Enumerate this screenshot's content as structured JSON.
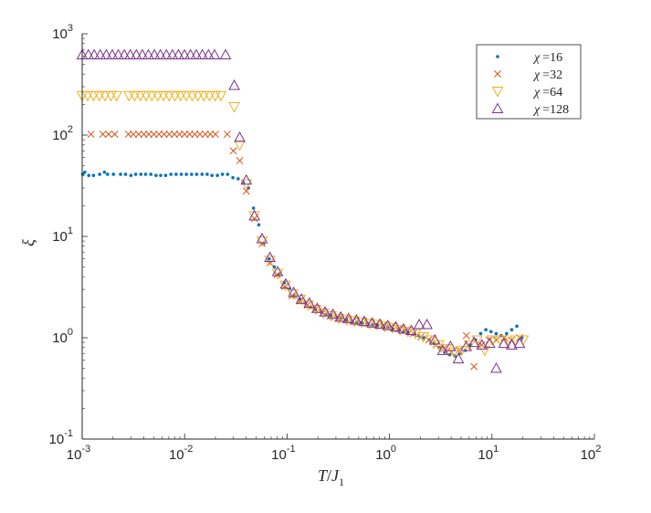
{
  "chart_data": {
    "type": "scatter",
    "title": "",
    "xlabel_main": "T",
    "xlabel_sep": "/",
    "xlabel_var": "J",
    "xlabel_sub": "1",
    "ylabel": "ξ",
    "xscale": "log",
    "yscale": "log",
    "xlim": [
      0.001,
      100
    ],
    "ylim": [
      0.1,
      1000
    ],
    "legend_position": "top-right",
    "x_ticks": [
      {
        "base": "10",
        "exp": "-3"
      },
      {
        "base": "10",
        "exp": "-2"
      },
      {
        "base": "10",
        "exp": "-1"
      },
      {
        "base": "10",
        "exp": "0"
      },
      {
        "base": "10",
        "exp": "1"
      },
      {
        "base": "10",
        "exp": "2"
      }
    ],
    "y_ticks": [
      {
        "base": "10",
        "exp": "-1"
      },
      {
        "base": "10",
        "exp": "0"
      },
      {
        "base": "10",
        "exp": "1"
      },
      {
        "base": "10",
        "exp": "2"
      },
      {
        "base": "10",
        "exp": "3"
      }
    ],
    "series": [
      {
        "name": "χ =16",
        "label_var": "χ",
        "label_eq": "=16",
        "marker": "dot",
        "color": "#0072BD",
        "points": [
          [
            0.00101,
            41
          ],
          [
            0.00106,
            43
          ],
          [
            0.00116,
            40
          ],
          [
            0.00129,
            40
          ],
          [
            0.00148,
            41
          ],
          [
            0.00165,
            43
          ],
          [
            0.00177,
            41
          ],
          [
            0.00202,
            41
          ],
          [
            0.00237,
            41
          ],
          [
            0.00265,
            41
          ],
          [
            0.00299,
            40
          ],
          [
            0.00333,
            41
          ],
          [
            0.00374,
            41
          ],
          [
            0.00416,
            41
          ],
          [
            0.00468,
            41
          ],
          [
            0.00526,
            40
          ],
          [
            0.00584,
            40
          ],
          [
            0.00653,
            40
          ],
          [
            0.00735,
            41
          ],
          [
            0.00826,
            41
          ],
          [
            0.00928,
            41
          ],
          [
            0.0104,
            41
          ],
          [
            0.0117,
            41
          ],
          [
            0.0131,
            41
          ],
          [
            0.0148,
            41
          ],
          [
            0.0166,
            41
          ],
          [
            0.0185,
            40
          ],
          [
            0.0209,
            40
          ],
          [
            0.0234,
            41
          ],
          [
            0.0263,
            41
          ],
          [
            0.0296,
            38
          ],
          [
            0.0333,
            37
          ],
          [
            0.0374,
            34
          ],
          [
            0.042,
            30
          ],
          [
            0.047,
            19
          ],
          [
            0.053,
            13
          ],
          [
            0.059,
            8.5
          ],
          [
            0.067,
            6
          ],
          [
            0.075,
            5
          ],
          [
            0.084,
            4.2
          ],
          [
            0.094,
            3.5
          ],
          [
            0.106,
            3
          ],
          [
            0.119,
            2.6
          ],
          [
            0.134,
            2.4
          ],
          [
            0.15,
            2.2
          ],
          [
            0.169,
            2
          ],
          [
            0.189,
            1.9
          ],
          [
            0.213,
            1.8
          ],
          [
            0.239,
            1.7
          ],
          [
            0.268,
            1.65
          ],
          [
            0.301,
            1.6
          ],
          [
            0.338,
            1.55
          ],
          [
            0.38,
            1.5
          ],
          [
            0.427,
            1.45
          ],
          [
            0.479,
            1.42
          ],
          [
            0.538,
            1.4
          ],
          [
            0.604,
            1.38
          ],
          [
            0.678,
            1.35
          ],
          [
            0.762,
            1.33
          ],
          [
            0.856,
            1.3
          ],
          [
            0.961,
            1.28
          ],
          [
            1.08,
            1.22
          ],
          [
            1.21,
            1.18
          ],
          [
            1.36,
            1.15
          ],
          [
            1.53,
            1.12
          ],
          [
            1.72,
            1.08
          ],
          [
            1.93,
            1.05
          ],
          [
            2.17,
            1
          ],
          [
            2.43,
            0.95
          ],
          [
            2.73,
            0.88
          ],
          [
            3.07,
            0.8
          ],
          [
            3.45,
            0.72
          ],
          [
            3.87,
            0.68
          ],
          [
            4.35,
            0.66
          ],
          [
            4.88,
            0.7
          ],
          [
            5.48,
            0.75
          ],
          [
            6.16,
            0.85
          ],
          [
            6.91,
            0.95
          ],
          [
            7.76,
            1.1
          ],
          [
            8.72,
            1.2
          ],
          [
            9.8,
            1.15
          ],
          [
            11,
            1.1
          ],
          [
            12.3,
            1.05
          ],
          [
            13.9,
            1.1
          ],
          [
            15.6,
            1.2
          ],
          [
            17.5,
            1.3
          ],
          [
            19.6,
            1
          ]
        ]
      },
      {
        "name": "χ =32",
        "label_var": "χ",
        "label_eq": "=32",
        "marker": "x",
        "color": "#D95319",
        "points": [
          [
            0.00122,
            102
          ],
          [
            0.00159,
            102
          ],
          [
            0.00181,
            102
          ],
          [
            0.00208,
            102
          ],
          [
            0.00283,
            102
          ],
          [
            0.00316,
            102
          ],
          [
            0.00356,
            102
          ],
          [
            0.004,
            102
          ],
          [
            0.00447,
            102
          ],
          [
            0.00501,
            102
          ],
          [
            0.00562,
            102
          ],
          [
            0.00631,
            102
          ],
          [
            0.00708,
            102
          ],
          [
            0.00795,
            102
          ],
          [
            0.00892,
            102
          ],
          [
            0.01,
            102
          ],
          [
            0.0112,
            102
          ],
          [
            0.0126,
            102
          ],
          [
            0.0141,
            102
          ],
          [
            0.0159,
            102
          ],
          [
            0.0178,
            102
          ],
          [
            0.02,
            102
          ],
          [
            0.0261,
            102
          ],
          [
            0.0299,
            70
          ],
          [
            0.0345,
            56
          ],
          [
            0.04,
            28
          ],
          [
            0.048,
            15
          ],
          [
            0.057,
            8.5
          ],
          [
            0.068,
            5.5
          ],
          [
            0.08,
            4.2
          ],
          [
            0.095,
            3.2
          ],
          [
            0.112,
            2.6
          ],
          [
            0.133,
            2.3
          ],
          [
            0.158,
            2.1
          ],
          [
            0.187,
            1.9
          ],
          [
            0.222,
            1.75
          ],
          [
            0.263,
            1.65
          ],
          [
            0.312,
            1.55
          ],
          [
            0.37,
            1.5
          ],
          [
            0.438,
            1.45
          ],
          [
            0.52,
            1.42
          ],
          [
            0.616,
            1.38
          ],
          [
            0.73,
            1.35
          ],
          [
            0.866,
            1.32
          ],
          [
            1.03,
            1.28
          ],
          [
            1.22,
            1.22
          ],
          [
            1.44,
            1.18
          ],
          [
            1.71,
            1.1
          ],
          [
            2.03,
            1.02
          ],
          [
            2.41,
            0.95
          ],
          [
            2.85,
            0.85
          ],
          [
            3.38,
            0.78
          ],
          [
            4.01,
            0.72
          ],
          [
            4.75,
            0.75
          ],
          [
            5.63,
            1.05
          ],
          [
            6.68,
            0.52
          ],
          [
            7.92,
            0.85
          ],
          [
            9.39,
            0.95
          ],
          [
            11.1,
            0.95
          ],
          [
            13.2,
            1
          ],
          [
            15.6,
            0.95
          ],
          [
            18.6,
            1
          ]
        ]
      },
      {
        "name": "χ =64",
        "label_var": "χ",
        "label_eq": "=64",
        "marker": "triangle-down",
        "color": "#EDB120",
        "points": [
          [
            0.001,
            245
          ],
          [
            0.00113,
            245
          ],
          [
            0.00129,
            245
          ],
          [
            0.00147,
            245
          ],
          [
            0.00167,
            245
          ],
          [
            0.00191,
            245
          ],
          [
            0.00217,
            245
          ],
          [
            0.00286,
            245
          ],
          [
            0.00325,
            245
          ],
          [
            0.0037,
            245
          ],
          [
            0.00421,
            245
          ],
          [
            0.00479,
            245
          ],
          [
            0.00546,
            245
          ],
          [
            0.00621,
            245
          ],
          [
            0.00707,
            245
          ],
          [
            0.00805,
            245
          ],
          [
            0.00916,
            245
          ],
          [
            0.0104,
            245
          ],
          [
            0.0119,
            245
          ],
          [
            0.0135,
            245
          ],
          [
            0.0154,
            245
          ],
          [
            0.0175,
            245
          ],
          [
            0.0199,
            245
          ],
          [
            0.0226,
            245
          ],
          [
            0.0305,
            190
          ],
          [
            0.0345,
            80
          ],
          [
            0.04,
            33
          ],
          [
            0.048,
            16
          ],
          [
            0.057,
            9
          ],
          [
            0.068,
            5.8
          ],
          [
            0.081,
            4.3
          ],
          [
            0.096,
            3.3
          ],
          [
            0.114,
            2.7
          ],
          [
            0.135,
            2.4
          ],
          [
            0.161,
            2.1
          ],
          [
            0.191,
            1.9
          ],
          [
            0.227,
            1.75
          ],
          [
            0.27,
            1.65
          ],
          [
            0.321,
            1.55
          ],
          [
            0.381,
            1.5
          ],
          [
            0.453,
            1.45
          ],
          [
            0.538,
            1.42
          ],
          [
            0.639,
            1.38
          ],
          [
            0.76,
            1.35
          ],
          [
            0.903,
            1.3
          ],
          [
            1.07,
            1.25
          ],
          [
            1.27,
            1.2
          ],
          [
            1.51,
            1.15
          ],
          [
            1.8,
            1.1
          ],
          [
            2.14,
            1.02
          ],
          [
            2.54,
            0.95
          ],
          [
            3.02,
            0.85
          ],
          [
            3.59,
            0.78
          ],
          [
            4.26,
            0.72
          ],
          [
            5.06,
            0.75
          ],
          [
            6.02,
            0.85
          ],
          [
            7.15,
            0.95
          ],
          [
            8.5,
            0.75
          ],
          [
            10.1,
            0.95
          ],
          [
            12,
            0.95
          ],
          [
            14.3,
            0.9
          ],
          [
            17,
            0.95
          ],
          [
            20.2,
            0.95
          ]
        ]
      },
      {
        "name": "χ =128",
        "label_var": "χ",
        "label_eq": "=128",
        "marker": "triangle-up",
        "color": "#7E2F8E",
        "points": [
          [
            0.001,
            620
          ],
          [
            0.00115,
            620
          ],
          [
            0.00131,
            620
          ],
          [
            0.0015,
            620
          ],
          [
            0.00172,
            620
          ],
          [
            0.00197,
            620
          ],
          [
            0.00225,
            620
          ],
          [
            0.00258,
            620
          ],
          [
            0.00295,
            620
          ],
          [
            0.00338,
            620
          ],
          [
            0.00387,
            620
          ],
          [
            0.00443,
            620
          ],
          [
            0.00507,
            620
          ],
          [
            0.0058,
            620
          ],
          [
            0.00664,
            620
          ],
          [
            0.0076,
            620
          ],
          [
            0.0087,
            620
          ],
          [
            0.00996,
            620
          ],
          [
            0.0114,
            620
          ],
          [
            0.013,
            620
          ],
          [
            0.0149,
            620
          ],
          [
            0.0171,
            620
          ],
          [
            0.0196,
            620
          ],
          [
            0.0251,
            620
          ],
          [
            0.0305,
            310
          ],
          [
            0.0345,
            95
          ],
          [
            0.04,
            36
          ],
          [
            0.048,
            16
          ],
          [
            0.057,
            9.5
          ],
          [
            0.068,
            6.2
          ],
          [
            0.081,
            4.5
          ],
          [
            0.097,
            3.4
          ],
          [
            0.116,
            2.8
          ],
          [
            0.138,
            2.4
          ],
          [
            0.165,
            2.2
          ],
          [
            0.197,
            1.95
          ],
          [
            0.235,
            1.8
          ],
          [
            0.28,
            1.7
          ],
          [
            0.334,
            1.6
          ],
          [
            0.398,
            1.55
          ],
          [
            0.475,
            1.5
          ],
          [
            0.567,
            1.45
          ],
          [
            0.676,
            1.4
          ],
          [
            0.806,
            1.36
          ],
          [
            0.962,
            1.32
          ],
          [
            1.15,
            1.28
          ],
          [
            1.37,
            1.22
          ],
          [
            1.63,
            1.18
          ],
          [
            1.95,
            1.35
          ],
          [
            2.32,
            1.35
          ],
          [
            2.77,
            0.95
          ],
          [
            3.31,
            0.75
          ],
          [
            3.94,
            0.82
          ],
          [
            4.7,
            0.62
          ],
          [
            5.61,
            0.82
          ],
          [
            6.69,
            0.9
          ],
          [
            7.98,
            0.85
          ],
          [
            9.51,
            0.88
          ],
          [
            11,
            0.5
          ],
          [
            13.1,
            0.88
          ],
          [
            15.6,
            0.85
          ],
          [
            18.6,
            0.88
          ]
        ]
      }
    ]
  }
}
